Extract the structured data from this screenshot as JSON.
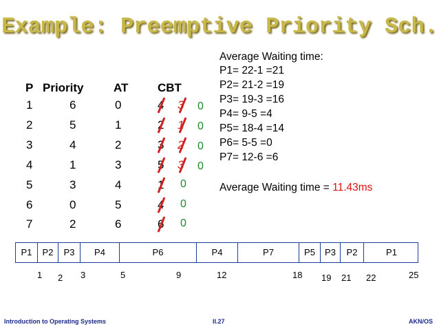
{
  "title": "Example: Preemptive Priority Sch.",
  "table": {
    "headers": [
      "P",
      "Priority",
      "AT",
      "CBT"
    ],
    "rows": [
      {
        "p": "1",
        "priority": "6",
        "at": "0",
        "cbt": "4",
        "new": "3",
        "zero": "0"
      },
      {
        "p": "2",
        "priority": "5",
        "at": "1",
        "cbt": "2",
        "new": "1",
        "zero": "0"
      },
      {
        "p": "3",
        "priority": "4",
        "at": "2",
        "cbt": "3",
        "new": "2",
        "zero": "0"
      },
      {
        "p": "4",
        "priority": "1",
        "at": "3",
        "cbt": "5",
        "new": "3",
        "zero": "0"
      },
      {
        "p": "5",
        "priority": "3",
        "at": "4",
        "cbt": "1",
        "new": "",
        "zero": "0"
      },
      {
        "p": "6",
        "priority": "0",
        "at": "5",
        "cbt": "4",
        "new": "",
        "zero": "0"
      },
      {
        "p": "7",
        "priority": "2",
        "at": "6",
        "cbt": "6",
        "new": "",
        "zero": "0"
      }
    ]
  },
  "awt": {
    "heading": "Average Waiting time:",
    "lines": [
      "P1= 22-1 =21",
      "P2= 21-2 =19",
      "P3= 19-3 =16",
      "P4= 9-5 =4",
      "P5= 18-4 =14",
      "P6= 5-5 =0",
      "P7= 12-6 =6"
    ],
    "summary_label": "Average Waiting time = ",
    "summary_value": "11.43ms",
    "summary_color": "#dd1111"
  },
  "gantt": {
    "cells": [
      "P1",
      "P2",
      "P3",
      "P4",
      "P6",
      "P4",
      "P7",
      "P5",
      "P3",
      "P2",
      "P1"
    ],
    "ticks": [
      "1",
      "2",
      "3",
      "5",
      "9",
      "12",
      "18",
      "19",
      "21",
      "22",
      "25"
    ]
  },
  "footer": {
    "left": "Introduction to Operating Systems",
    "center": "II.27",
    "right": "AKN/OS"
  },
  "colors": {
    "title": "#c8b84a",
    "strike": "#d22020",
    "zero": "#1a8a2a",
    "gantt_border": "#1a3c9a",
    "footer": "#1a2a8a"
  }
}
